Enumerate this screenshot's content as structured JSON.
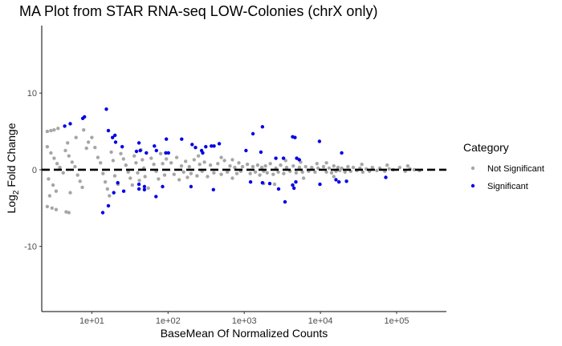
{
  "chart_data": {
    "type": "scatter",
    "title": "MA Plot from STAR RNA-seq LOW-Colonies (chrX only)",
    "xlabel": "BaseMean Of Normalized Counts",
    "ylabel_main": "Log",
    "ylabel_sub": "2",
    "ylabel_tail": " Fold Change",
    "x_scale": "log10",
    "xlim": [
      2.2,
      450000
    ],
    "ylim": [
      -18.5,
      18.8
    ],
    "x_ticks": [
      {
        "value": 10,
        "label": "1e+01"
      },
      {
        "value": 100,
        "label": "1e+02"
      },
      {
        "value": 1000,
        "label": "1e+03"
      },
      {
        "value": 10000,
        "label": "1e+04"
      },
      {
        "value": 100000,
        "label": "1e+05"
      }
    ],
    "y_ticks": [
      {
        "value": 10,
        "label": "10"
      },
      {
        "value": 0,
        "label": "0"
      },
      {
        "value": -10,
        "label": "-10"
      }
    ],
    "reference_line": {
      "y": 0,
      "style": "dashed",
      "color": "#000000"
    },
    "legend": {
      "title": "Category",
      "position": "right",
      "entries": [
        {
          "label": "Not Significant",
          "color": "#a6a6a6"
        },
        {
          "label": "Significant",
          "color": "#0000e6"
        }
      ]
    },
    "series": [
      {
        "name": "Not Significant",
        "color": "#a6a6a6",
        "points": [
          [
            2.6,
            5.0
          ],
          [
            2.9,
            5.1
          ],
          [
            3.2,
            5.2
          ],
          [
            3.6,
            5.4
          ],
          [
            2.6,
            -4.8
          ],
          [
            3.0,
            -5.0
          ],
          [
            3.4,
            -5.2
          ],
          [
            4.6,
            -5.5
          ],
          [
            5.0,
            -5.6
          ],
          [
            2.6,
            3.0
          ],
          [
            2.9,
            2.2
          ],
          [
            3.2,
            1.5
          ],
          [
            3.5,
            0.8
          ],
          [
            3.8,
            0.3
          ],
          [
            4.2,
            -0.4
          ],
          [
            2.7,
            -1.2
          ],
          [
            3.1,
            -2.0
          ],
          [
            3.4,
            -2.8
          ],
          [
            2.8,
            -3.4
          ],
          [
            4.5,
            2.5
          ],
          [
            5.0,
            1.8
          ],
          [
            5.5,
            1.0
          ],
          [
            6.0,
            0.4
          ],
          [
            6.5,
            -0.7
          ],
          [
            7.0,
            -1.5
          ],
          [
            7.5,
            -2.3
          ],
          [
            5.2,
            -3.0
          ],
          [
            4.8,
            3.5
          ],
          [
            6.2,
            4.2
          ],
          [
            7.8,
            5.2
          ],
          [
            8.5,
            2.8
          ],
          [
            9.0,
            3.6
          ],
          [
            10,
            4.2
          ],
          [
            11,
            2.9
          ],
          [
            12,
            1.6
          ],
          [
            13,
            0.9
          ],
          [
            14,
            -0.5
          ],
          [
            15,
            -1.6
          ],
          [
            16,
            -2.5
          ],
          [
            17,
            -3.4
          ],
          [
            18,
            2.3
          ],
          [
            19,
            1.2
          ],
          [
            20,
            -0.8
          ],
          [
            22,
            -1.9
          ],
          [
            24,
            2.1
          ],
          [
            26,
            1.4
          ],
          [
            28,
            0.6
          ],
          [
            30,
            -0.3
          ],
          [
            32,
            -1.1
          ],
          [
            34,
            -2.0
          ],
          [
            36,
            1.8
          ],
          [
            38,
            0.9
          ],
          [
            40,
            -0.4
          ],
          [
            42,
            -1.4
          ],
          [
            44,
            2.6
          ],
          [
            46,
            1.3
          ],
          [
            48,
            0.2
          ],
          [
            50,
            -0.9
          ],
          [
            55,
            -2.4
          ],
          [
            60,
            1.5
          ],
          [
            65,
            0.7
          ],
          [
            70,
            -0.2
          ],
          [
            75,
            -1.2
          ],
          [
            80,
            2.1
          ],
          [
            85,
            0.8
          ],
          [
            90,
            -0.7
          ],
          [
            95,
            1.4
          ],
          [
            110,
            0.9
          ],
          [
            120,
            -0.6
          ],
          [
            130,
            1.6
          ],
          [
            140,
            -1.3
          ],
          [
            150,
            0.5
          ],
          [
            160,
            -0.3
          ],
          [
            170,
            1.1
          ],
          [
            180,
            -1.0
          ],
          [
            190,
            0.4
          ],
          [
            200,
            -0.5
          ],
          [
            220,
            1.3
          ],
          [
            240,
            -0.8
          ],
          [
            260,
            0.7
          ],
          [
            280,
            -0.2
          ],
          [
            300,
            1.0
          ],
          [
            330,
            -0.9
          ],
          [
            360,
            0.6
          ],
          [
            400,
            -0.4
          ],
          [
            450,
            0.8
          ],
          [
            500,
            -0.6
          ],
          [
            550,
            1.2
          ],
          [
            600,
            -0.3
          ],
          [
            650,
            0.5
          ],
          [
            700,
            -1.1
          ],
          [
            750,
            0.3
          ],
          [
            800,
            -0.5
          ],
          [
            850,
            0.9
          ],
          [
            900,
            -0.2
          ],
          [
            950,
            0.4
          ],
          [
            1100,
            0.7
          ],
          [
            1200,
            -0.5
          ],
          [
            1300,
            0.4
          ],
          [
            1400,
            -0.3
          ],
          [
            1500,
            0.6
          ],
          [
            1600,
            -0.7
          ],
          [
            1700,
            0.3
          ],
          [
            1800,
            -0.2
          ],
          [
            1900,
            0.5
          ],
          [
            2000,
            -0.4
          ],
          [
            2200,
            0.8
          ],
          [
            2400,
            -0.6
          ],
          [
            2600,
            0.2
          ],
          [
            2800,
            -0.3
          ],
          [
            3000,
            0.6
          ],
          [
            3300,
            -0.5
          ],
          [
            3600,
            0.3
          ],
          [
            4000,
            -0.2
          ],
          [
            4400,
            0.5
          ],
          [
            4800,
            -0.4
          ],
          [
            5300,
            0.3
          ],
          [
            5800,
            -0.3
          ],
          [
            6400,
            0.4
          ],
          [
            7000,
            -0.2
          ],
          [
            7700,
            0.3
          ],
          [
            8500,
            -0.3
          ],
          [
            9300,
            0.2
          ],
          [
            11000,
            0.4
          ],
          [
            12000,
            -0.3
          ],
          [
            13000,
            0.2
          ],
          [
            14000,
            -0.4
          ],
          [
            15000,
            0.5
          ],
          [
            16000,
            -0.2
          ],
          [
            17000,
            0.3
          ],
          [
            18000,
            -0.1
          ],
          [
            19000,
            0.2
          ],
          [
            21000,
            -0.3
          ],
          [
            23000,
            0.4
          ],
          [
            25000,
            -0.2
          ],
          [
            27000,
            0.3
          ],
          [
            30000,
            -0.1
          ],
          [
            33000,
            0.2
          ],
          [
            36000,
            -0.3
          ],
          [
            40000,
            0.1
          ],
          [
            44000,
            -0.2
          ],
          [
            48000,
            0.3
          ],
          [
            55000,
            -0.1
          ],
          [
            60000,
            0.2
          ],
          [
            70000,
            -0.2
          ],
          [
            80000,
            0.1
          ],
          [
            90000,
            0.0
          ],
          [
            110000,
            0.3
          ],
          [
            130000,
            -0.2
          ],
          [
            150000,
            0.1
          ],
          [
            170000,
            0.0
          ],
          [
            200000,
            -0.1
          ],
          [
            1800,
            -1.8
          ],
          [
            2500,
            -1.9
          ],
          [
            6000,
            -1.1
          ],
          [
            15000,
            -0.9
          ],
          [
            3500,
            1.2
          ],
          [
            5500,
            1.0
          ],
          [
            9000,
            0.8
          ],
          [
            500,
            1.6
          ],
          [
            250,
            1.8
          ],
          [
            700,
            1.3
          ],
          [
            12000,
            0.9
          ],
          [
            35000,
            0.7
          ],
          [
            75000,
            0.6
          ],
          [
            140000,
            0.5
          ]
        ]
      },
      {
        "name": "Significant",
        "color": "#0000e6",
        "points": [
          [
            4.4,
            5.7
          ],
          [
            5.2,
            6.0
          ],
          [
            7.6,
            6.7
          ],
          [
            8.0,
            6.9
          ],
          [
            15.5,
            7.9
          ],
          [
            16.5,
            5.1
          ],
          [
            18.7,
            4.2
          ],
          [
            20.1,
            4.5
          ],
          [
            20.5,
            3.6
          ],
          [
            25.0,
            3.0
          ],
          [
            41.5,
            3.5
          ],
          [
            38.5,
            2.4
          ],
          [
            43.2,
            2.5
          ],
          [
            51.9,
            2.2
          ],
          [
            70.4,
            2.5
          ],
          [
            66.2,
            3.1
          ],
          [
            93.5,
            2.2
          ],
          [
            101.3,
            2.2
          ],
          [
            95.0,
            4.0
          ],
          [
            150.9,
            4.0
          ],
          [
            207.0,
            3.3
          ],
          [
            229.0,
            2.9
          ],
          [
            275.5,
            2.5
          ],
          [
            285.0,
            2.2
          ],
          [
            312.4,
            3.0
          ],
          [
            370.7,
            3.1
          ],
          [
            401.1,
            3.1
          ],
          [
            469.6,
            3.4
          ],
          [
            1055.2,
            2.5
          ],
          [
            1303.8,
            4.7
          ],
          [
            1733.2,
            5.6
          ],
          [
            1656.0,
            2.3
          ],
          [
            2597.9,
            1.5
          ],
          [
            3276.5,
            1.5
          ],
          [
            4315.2,
            4.3
          ],
          [
            4635.7,
            4.2
          ],
          [
            4890.4,
            1.5
          ],
          [
            5276.7,
            1.3
          ],
          [
            9710.4,
            3.7
          ],
          [
            19000,
            2.2
          ],
          [
            21.9,
            -1.7
          ],
          [
            26.2,
            -2.8
          ],
          [
            41.5,
            -2.5
          ],
          [
            41.5,
            -1.9
          ],
          [
            49.0,
            -2.2
          ],
          [
            49.0,
            -2.6
          ],
          [
            69.4,
            -3.5
          ],
          [
            84.8,
            -2.2
          ],
          [
            19.4,
            -3.0
          ],
          [
            16.5,
            -4.7
          ],
          [
            13.9,
            -5.6
          ],
          [
            1210.6,
            -1.6
          ],
          [
            1733.2,
            -1.7
          ],
          [
            2163.5,
            -1.8
          ],
          [
            2825.7,
            -2.5
          ],
          [
            3426.3,
            -4.2
          ],
          [
            4315.2,
            -2.0
          ],
          [
            4496.1,
            -2.4
          ],
          [
            4755.3,
            -1.6
          ],
          [
            9862.9,
            -1.9
          ],
          [
            17500,
            -1.6
          ],
          [
            22000,
            -1.5
          ],
          [
            72000,
            -1.0
          ],
          [
            200.1,
            -2.2
          ],
          [
            393.9,
            -2.6
          ],
          [
            16000,
            -1.3
          ]
        ]
      }
    ]
  }
}
